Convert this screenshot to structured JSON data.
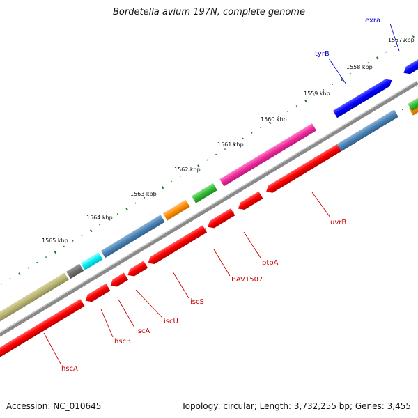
{
  "title": "Bordetella avium 197N, complete genome",
  "accession_label": "Accession: NC_010645",
  "summary_label": "Topology: circular; Length: 3,732,255 bp; Genes: 3,455",
  "colors": {
    "backbone": "#808080",
    "tick": "#1a7a1a",
    "label_red": "#cc0000",
    "label_blue": "#0000cc"
  },
  "kbp_ticks": [
    "1557 kbp",
    "1558 kbp",
    "1559 kbp",
    "1560 kbp",
    "1561 kbp",
    "1562 kbp",
    "1563 kbp",
    "1564 kbp",
    "1565 kbp"
  ],
  "gene_labels": [
    {
      "name": "exra",
      "color": "blue"
    },
    {
      "name": "tyrB",
      "color": "blue"
    },
    {
      "name": "uvrB",
      "color": "red"
    },
    {
      "name": "ptpA",
      "color": "red"
    },
    {
      "name": "BAV1507",
      "color": "red"
    },
    {
      "name": "iscS",
      "color": "red"
    },
    {
      "name": "iscU",
      "color": "red"
    },
    {
      "name": "iscA",
      "color": "red"
    },
    {
      "name": "hscB",
      "color": "red"
    },
    {
      "name": "hscA",
      "color": "red"
    }
  ],
  "feature_colors": [
    "red",
    "steelblue",
    "blue",
    "green",
    "orange",
    "magenta",
    "cyan",
    "gray",
    "khaki"
  ]
}
